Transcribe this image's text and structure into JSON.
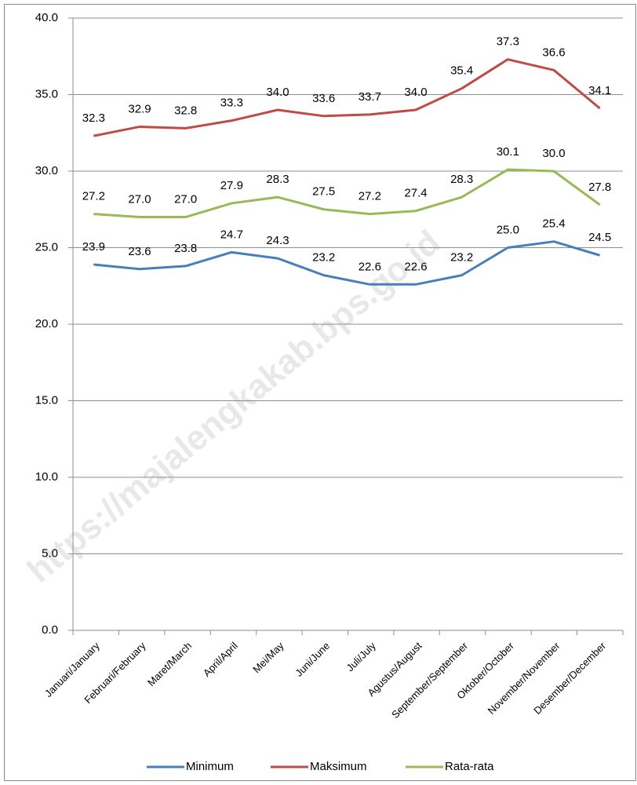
{
  "chart_data": {
    "type": "line",
    "watermark": "https://majalengkakab.bps.go.id",
    "categories": [
      "Januari/January",
      "Februari/February",
      "Maret/March",
      "April/April",
      "Mei/May",
      "Juni/June",
      "Juli/July",
      "Agustus/August",
      "September/September",
      "Oktober/October",
      "November/November",
      "Desember/December"
    ],
    "series": [
      {
        "name": "Minimum",
        "color": "#4a7ebb",
        "values": [
          23.9,
          23.6,
          23.8,
          24.7,
          24.3,
          23.2,
          22.6,
          22.6,
          23.2,
          25.0,
          25.4,
          24.5
        ],
        "value_labels": [
          "23.9",
          "23.6",
          "23.8",
          "24.7",
          "24.3",
          "23.2",
          "22.6",
          "22.6",
          "23.2",
          "25.0",
          "25.4",
          "24.5"
        ]
      },
      {
        "name": "Maksimum",
        "color": "#be4b48",
        "values": [
          32.3,
          32.9,
          32.8,
          33.3,
          34.0,
          33.6,
          33.7,
          34.0,
          35.4,
          37.3,
          36.6,
          34.1
        ],
        "value_labels": [
          "32.3",
          "32.9",
          "32.8",
          "33.3",
          "34.0",
          "33.6",
          "33.7",
          "34.0",
          "35.4",
          "37.3",
          "36.6",
          "34.1"
        ]
      },
      {
        "name": "Rata-rata",
        "color": "#98b954",
        "values": [
          27.2,
          27.0,
          27.0,
          27.9,
          28.3,
          27.5,
          27.2,
          27.4,
          28.3,
          30.1,
          30.0,
          27.8
        ],
        "value_labels": [
          "27.2",
          "27.0",
          "27.0",
          "27.9",
          "28.3",
          "27.5",
          "27.2",
          "27.4",
          "28.3",
          "30.1",
          "30.0",
          "27.8"
        ]
      }
    ],
    "ylim": [
      0,
      40
    ],
    "yticks": [
      {
        "value": 0,
        "label": "0.0"
      },
      {
        "value": 5,
        "label": "5.0"
      },
      {
        "value": 10,
        "label": "10.0"
      },
      {
        "value": 15,
        "label": "15.0"
      },
      {
        "value": 20,
        "label": "20.0"
      },
      {
        "value": 25,
        "label": "25.0"
      },
      {
        "value": 30,
        "label": "30.0"
      },
      {
        "value": 35,
        "label": "35.0"
      },
      {
        "value": 40,
        "label": "40.0"
      }
    ],
    "grid": true,
    "legend": "bottom"
  }
}
